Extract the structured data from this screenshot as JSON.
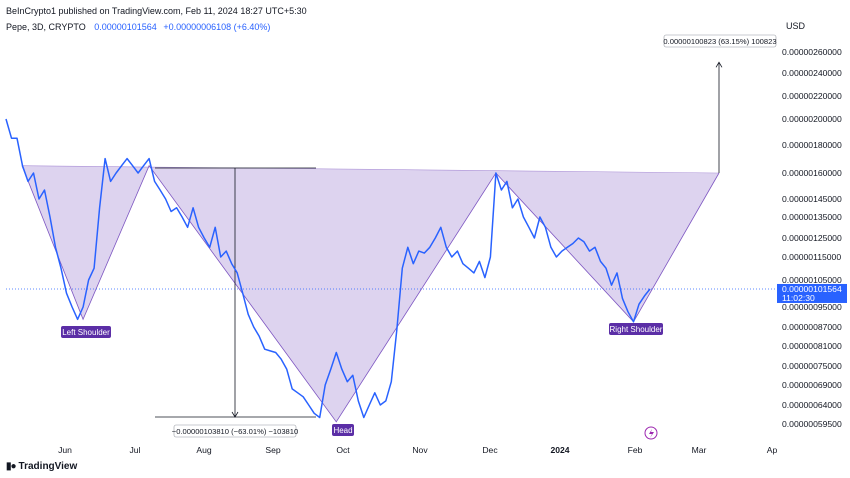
{
  "header": {
    "publisher": "BeInCrypto1 published on TradingView.com, Feb 11, 2024 18:27 UTC+5:30",
    "symbol": "Pepe, 3D, CRYPTO",
    "price": "0.00000101564",
    "change": "+0.00000006108 (+6.40%)"
  },
  "currency_label": "USD",
  "footer": {
    "logo": "TradingView"
  },
  "colors": {
    "price_line": "#2962ff",
    "pattern_fill": "#d1c4e9",
    "pattern_stroke": "#7e57c2",
    "label_bg": "#5b2ea6",
    "current_price_bg": "#2962ff"
  },
  "chart_data": {
    "type": "line",
    "title": "Pepe, 3D, CRYPTO",
    "x_ticks": [
      "Jun",
      "Jul",
      "Aug",
      "Sep",
      "Oct",
      "Nov",
      "Dec",
      "2024",
      "Feb",
      "Mar",
      "Ap"
    ],
    "y_ticks": [
      "0.00000260000",
      "0.00000240000",
      "0.00000220000",
      "0.00000200000",
      "0.00000180000",
      "0.00000160000",
      "0.00000145000",
      "0.00000135000",
      "0.00000125000",
      "0.00000115000",
      "0.00000105000",
      "0.00000095000",
      "0.00000087000",
      "0.00000081000",
      "0.00000075000",
      "0.00000069000",
      "0.00000064000",
      "0.00000059500"
    ],
    "y_scale": "log",
    "series": [
      {
        "values": [
          2e-06,
          1.85e-06,
          1.85e-06,
          1.65e-06,
          1.55e-06,
          1.6e-06,
          1.45e-06,
          1.5e-06,
          1.35e-06,
          1.2e-06,
          1.1e-06,
          1e-06,
          9.5e-07,
          9e-07,
          9.5e-07,
          1.05e-06,
          1.1e-06,
          1.4e-06,
          1.7e-06,
          1.55e-06,
          1.6e-06,
          1.65e-06,
          1.7e-06,
          1.65e-06,
          1.6e-06,
          1.65e-06,
          1.7e-06,
          1.55e-06,
          1.5e-06,
          1.45e-06,
          1.38e-06,
          1.4e-06,
          1.35e-06,
          1.3e-06,
          1.4e-06,
          1.3e-06,
          1.25e-06,
          1.2e-06,
          1.3e-06,
          1.15e-06,
          1.18e-06,
          1.12e-06,
          1.08e-06,
          1e-06,
          9.2e-07,
          8.7e-07,
          8.4e-07,
          8e-07,
          7.95e-07,
          7.9e-07,
          7.7e-07,
          7.4e-07,
          6.8e-07,
          6.7e-07,
          6.6e-07,
          6.4e-07,
          6.2e-07,
          6.1e-07,
          6.9e-07,
          7.4e-07,
          7.9e-07,
          7.4e-07,
          7e-07,
          7.2e-07,
          6.5e-07,
          6.1e-07,
          6.4e-07,
          6.7e-07,
          6.4e-07,
          6.5e-07,
          7e-07,
          8.6e-07,
          1.1e-06,
          1.2e-06,
          1.12e-06,
          1.18e-06,
          1.17e-06,
          1.2e-06,
          1.25e-06,
          1.3e-06,
          1.2e-06,
          1.15e-06,
          1.18e-06,
          1.12e-06,
          1.1e-06,
          1.08e-06,
          1.13e-06,
          1.06e-06,
          1.15e-06,
          1.6e-06,
          1.5e-06,
          1.55e-06,
          1.4e-06,
          1.45e-06,
          1.35e-06,
          1.3e-06,
          1.25e-06,
          1.35e-06,
          1.3e-06,
          1.2e-06,
          1.15e-06,
          1.18e-06,
          1.2e-06,
          1.22e-06,
          1.25e-06,
          1.23e-06,
          1.18e-06,
          1.2e-06,
          1.13e-06,
          1.1e-06,
          1.03e-06,
          1.08e-06,
          9.8e-07,
          9.3e-07,
          8.9e-07,
          9.6e-07,
          9.9e-07,
          1.01564e-06
        ]
      }
    ],
    "pattern_points": [
      {
        "date_index": 0,
        "price": 1.65e-06
      },
      {
        "date_index": 14,
        "price": 9e-07
      },
      {
        "date_index": 26,
        "price": 1.65e-06
      },
      {
        "date_index": 60,
        "price": 6e-07
      },
      {
        "date_index": 89,
        "price": 1.6e-06
      },
      {
        "date_index": 114,
        "price": 8.9e-07
      },
      {
        "date_index": 128,
        "price": 1.6e-06
      }
    ],
    "target_arrow_top": 2.5e-06,
    "annotations": {
      "left_shoulder": "Left Shoulder",
      "head": "Head",
      "right_shoulder": "Right Shoulder",
      "target_measure": "0.00000100823 (63.15%) 100823",
      "drop_measure": "−0.00000103810 (−63.01%) −103810"
    },
    "current_price": "0.00000101564",
    "countdown": "11:02:30",
    "ylim": [
      5.7e-07,
      2.75e-06
    ],
    "grid": false,
    "legend": "none"
  }
}
